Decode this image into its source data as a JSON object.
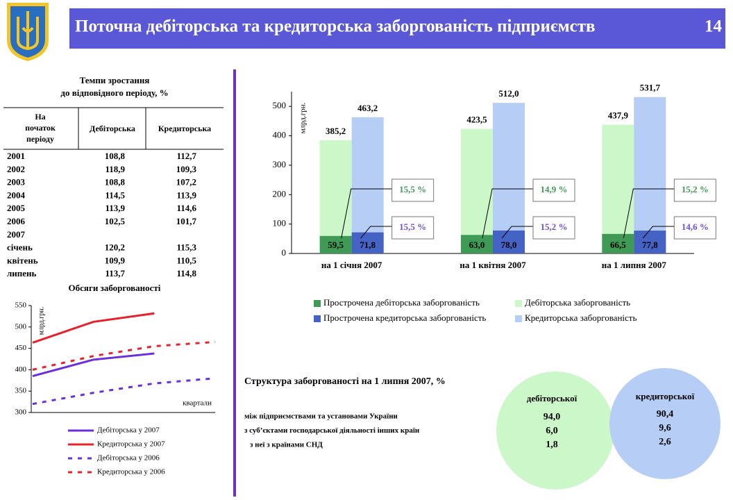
{
  "header": {
    "title": "Поточна дебіторська та кредиторська заборгованість підприємств",
    "page": "14"
  },
  "table": {
    "caption": [
      "Темпи зростання",
      "до відповідного періоду, %"
    ],
    "columns": [
      [
        "На",
        "початок",
        "періоду"
      ],
      "Дебіторська",
      "Кредиторська"
    ],
    "rows": [
      [
        "2001",
        "108,8",
        "112,7"
      ],
      [
        "2002",
        "118,9",
        "109,3"
      ],
      [
        "2003",
        "108,8",
        "107,2"
      ],
      [
        "2004",
        "114,5",
        "113,9"
      ],
      [
        "2005",
        "113,9",
        "114,6"
      ],
      [
        "2006",
        "102,5",
        "101,7"
      ],
      [
        "2007"
      ],
      [
        "січень",
        "120,2",
        "115,3"
      ],
      [
        "квітень",
        "109,9",
        "110,5"
      ],
      [
        "липень",
        "113,7",
        "114,8"
      ]
    ]
  },
  "chart_data": [
    {
      "type": "bar",
      "ylabel": "млрд.грн.",
      "categories": [
        "на 1 січня 2007",
        "на 1 квітня 2007",
        "на 1 липня 2007"
      ],
      "series": [
        {
          "name": "Прострочена дебіторська заборгованість",
          "color": "#3f9a55",
          "values": [
            59.5,
            63.0,
            66.5
          ],
          "value_labels": [
            "59,5",
            "63,0",
            "66,5"
          ]
        },
        {
          "name": "Дебіторська заборгованість",
          "color": "#ccf7c8",
          "values": [
            385.2,
            423.5,
            437.9
          ],
          "value_labels": [
            "385,2",
            "423,5",
            "437,9"
          ]
        },
        {
          "name": "Прострочена кредиторська заборгованість",
          "color": "#4463c4",
          "values": [
            71.8,
            78.0,
            77.8
          ],
          "value_labels": [
            "71,8",
            "78,0",
            "77,8"
          ]
        },
        {
          "name": "Кредиторська заборгованість",
          "color": "#b6cdf5",
          "values": [
            463.2,
            512.0,
            531.7
          ],
          "value_labels": [
            "463,2",
            "512,0",
            "531,7"
          ]
        }
      ],
      "annotations": {
        "debit": [
          "15,5 %",
          "14,9 %",
          "15,2 %"
        ],
        "credit": [
          "15,5 %",
          "15,2 %",
          "14,6 %"
        ]
      },
      "ylim": [
        0,
        550
      ],
      "yticks": [
        0,
        100,
        200,
        300,
        400,
        500
      ],
      "legend": "bottom"
    },
    {
      "type": "line",
      "title": "Обсяги заборгованості",
      "ylabel": "млрд.грн.",
      "xlabel": "квартали",
      "categories": [
        null,
        null,
        null,
        null
      ],
      "series": [
        {
          "name": "Дебіторська у 2007",
          "color": "#6a2ee0",
          "dashed": false,
          "values": [
            385.2,
            423.5,
            437.9,
            null
          ]
        },
        {
          "name": "Кредиторська у 2007",
          "color": "#e8202a",
          "dashed": false,
          "values": [
            463.2,
            512.0,
            531.7,
            null
          ]
        },
        {
          "name": "Дебіторська у 2006",
          "color": "#6a2ee0",
          "dashed": true,
          "values": [
            320,
            346,
            368,
            380
          ]
        },
        {
          "name": "Кредиторська у 2006",
          "color": "#e8202a",
          "dashed": true,
          "values": [
            400,
            432,
            455,
            465
          ]
        }
      ],
      "ylim": [
        300,
        550
      ],
      "yticks": [
        300,
        350,
        400,
        450,
        500,
        550
      ],
      "legend": "bottom"
    }
  ],
  "structure": {
    "title": "Структура заборгованості на 1 липня 2007, %",
    "rows": [
      "між підприємствами та установами України",
      "з суб’єктами господарської діяльності інших країн",
      "з неї з країнами СНД"
    ],
    "columns": [
      {
        "name": "дебіторської",
        "color": "#ccf7c8",
        "values": [
          "94,0",
          "6,0",
          "1,8"
        ]
      },
      {
        "name": "кредиторської",
        "color": "#b6cdf5",
        "values": [
          "90,4",
          "9,6",
          "2,6"
        ]
      }
    ]
  }
}
